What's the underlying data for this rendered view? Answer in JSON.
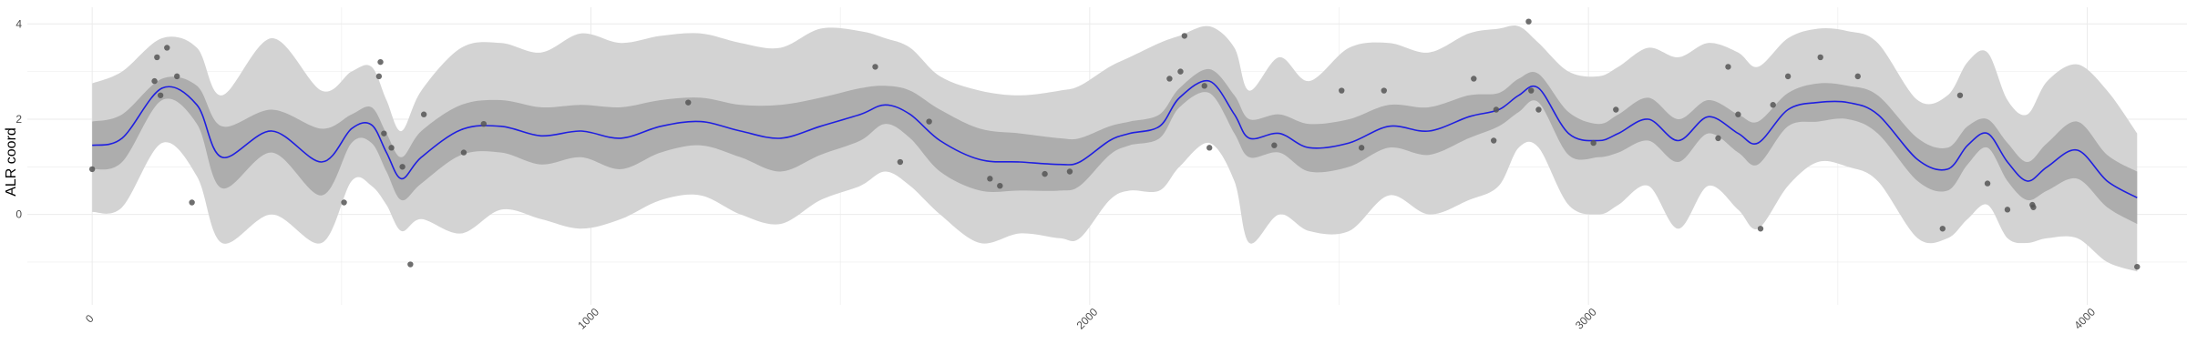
{
  "chart_data": {
    "type": "line",
    "title": "",
    "xlabel": "",
    "ylabel": "ALR coord",
    "xlim": [
      -130,
      4200
    ],
    "ylim": [
      -1.9,
      4.35
    ],
    "x_ticks": [
      0,
      1000,
      2000,
      3000,
      4000
    ],
    "x_tick_labels": [
      "0",
      "1000",
      "2000",
      "3000",
      "4000"
    ],
    "y_ticks": [
      0,
      2,
      4
    ],
    "y_tick_labels": [
      "0",
      "2",
      "4"
    ],
    "grid": true,
    "legend": "none",
    "colors": {
      "mean_line": "#1f1fe0",
      "inner_band": "#adadad",
      "outer_band": "#d3d3d3",
      "points": "#555555",
      "grid": "#ebebeb"
    },
    "mean_curve": {
      "x": [
        0,
        60,
        140,
        210,
        260,
        360,
        460,
        520,
        560,
        590,
        620,
        660,
        740,
        820,
        900,
        980,
        1060,
        1140,
        1220,
        1300,
        1380,
        1460,
        1540,
        1590,
        1640,
        1700,
        1780,
        1860,
        1940,
        1980,
        2040,
        2080,
        2140,
        2180,
        2240,
        2290,
        2320,
        2380,
        2440,
        2520,
        2600,
        2680,
        2760,
        2820,
        2860,
        2900,
        2960,
        3020,
        3060,
        3120,
        3180,
        3240,
        3300,
        3340,
        3400,
        3460,
        3520,
        3580,
        3660,
        3720,
        3760,
        3800,
        3840,
        3880,
        3920,
        3980,
        4040,
        4100
      ],
      "mean": [
        1.45,
        1.6,
        2.65,
        2.3,
        1.2,
        1.75,
        1.1,
        1.8,
        1.88,
        1.3,
        0.75,
        1.2,
        1.78,
        1.85,
        1.65,
        1.75,
        1.6,
        1.85,
        1.95,
        1.75,
        1.6,
        1.85,
        2.1,
        2.3,
        2.1,
        1.55,
        1.15,
        1.1,
        1.05,
        1.1,
        1.55,
        1.7,
        1.85,
        2.45,
        2.8,
        2.1,
        1.6,
        1.7,
        1.4,
        1.5,
        1.85,
        1.75,
        2.05,
        2.2,
        2.5,
        2.65,
        1.7,
        1.55,
        1.7,
        2.0,
        1.55,
        2.05,
        1.7,
        1.5,
        2.2,
        2.35,
        2.35,
        2.1,
        1.15,
        0.95,
        1.45,
        1.7,
        1.1,
        0.7,
        1.0,
        1.35,
        0.7,
        0.35
      ],
      "inner_upper": [
        1.95,
        2.1,
        2.85,
        2.7,
        1.85,
        2.2,
        1.8,
        2.1,
        2.25,
        1.7,
        1.2,
        1.75,
        2.3,
        2.4,
        2.25,
        2.3,
        2.25,
        2.4,
        2.45,
        2.3,
        2.3,
        2.45,
        2.65,
        2.7,
        2.6,
        2.2,
        1.8,
        1.7,
        1.6,
        1.6,
        1.85,
        1.95,
        2.1,
        2.65,
        3.05,
        2.5,
        2.0,
        2.1,
        1.9,
        2.0,
        2.3,
        2.25,
        2.5,
        2.55,
        2.85,
        2.95,
        2.15,
        1.9,
        2.1,
        2.45,
        2.0,
        2.4,
        2.1,
        1.95,
        2.55,
        2.75,
        2.7,
        2.5,
        1.6,
        1.4,
        1.85,
        2.0,
        1.5,
        1.1,
        1.5,
        1.95,
        1.25,
        0.9
      ],
      "inner_lower": [
        0.95,
        1.1,
        2.4,
        1.9,
        0.55,
        1.3,
        0.4,
        1.5,
        1.5,
        0.9,
        0.3,
        0.65,
        1.25,
        1.3,
        1.05,
        1.2,
        0.95,
        1.3,
        1.45,
        1.2,
        0.9,
        1.25,
        1.55,
        1.9,
        1.6,
        0.9,
        0.5,
        0.5,
        0.5,
        0.6,
        1.25,
        1.45,
        1.6,
        2.25,
        2.55,
        1.7,
        1.2,
        1.3,
        0.9,
        1.0,
        1.4,
        1.25,
        1.6,
        1.85,
        2.15,
        2.35,
        1.25,
        1.2,
        1.3,
        1.55,
        1.1,
        1.7,
        1.3,
        1.05,
        1.85,
        1.95,
        2.0,
        1.7,
        0.7,
        0.5,
        1.05,
        1.4,
        0.7,
        0.3,
        0.5,
        0.75,
        0.15,
        -0.2
      ],
      "outer_upper": [
        2.75,
        3.0,
        3.7,
        3.5,
        2.5,
        3.7,
        2.6,
        3.0,
        3.1,
        2.4,
        1.75,
        2.6,
        3.5,
        3.6,
        3.4,
        3.8,
        3.6,
        3.75,
        3.8,
        3.6,
        3.5,
        3.9,
        3.85,
        3.7,
        3.5,
        2.9,
        2.6,
        2.5,
        2.6,
        2.7,
        3.1,
        3.3,
        3.6,
        3.75,
        3.95,
        3.5,
        2.6,
        3.3,
        2.8,
        3.5,
        3.6,
        3.4,
        3.8,
        3.9,
        3.95,
        3.6,
        3.0,
        2.9,
        3.1,
        3.5,
        3.3,
        3.6,
        3.4,
        3.1,
        3.7,
        3.9,
        3.85,
        3.6,
        2.4,
        2.5,
        3.2,
        3.4,
        2.4,
        2.1,
        2.8,
        3.15,
        2.6,
        1.7
      ],
      "outer_lower": [
        0.05,
        0.15,
        1.5,
        0.8,
        -0.6,
        0.0,
        -0.6,
        0.7,
        0.6,
        0.2,
        -0.35,
        -0.1,
        -0.4,
        0.1,
        -0.1,
        -0.3,
        -0.1,
        0.3,
        0.4,
        0.0,
        -0.2,
        0.3,
        0.6,
        0.9,
        0.6,
        0.0,
        -0.6,
        -0.4,
        -0.5,
        -0.5,
        0.3,
        0.5,
        0.5,
        1.0,
        1.5,
        0.7,
        -0.6,
        0.0,
        -0.35,
        -0.35,
        0.4,
        0.0,
        0.3,
        0.6,
        1.4,
        1.4,
        0.2,
        0.0,
        0.2,
        0.6,
        -0.3,
        0.6,
        0.1,
        -0.3,
        0.6,
        1.1,
        1.0,
        0.7,
        -0.5,
        -0.5,
        -0.1,
        0.2,
        -0.5,
        -0.6,
        -0.5,
        -0.5,
        -1.0,
        -1.2
      ]
    },
    "points": {
      "x": [
        0,
        125,
        130,
        137,
        150,
        170,
        200,
        505,
        575,
        578,
        585,
        600,
        622,
        638,
        665,
        745,
        785,
        1195,
        1570,
        1620,
        1678,
        1800,
        1820,
        1910,
        1960,
        2160,
        2182,
        2190,
        2230,
        2240,
        2370,
        2505,
        2545,
        2590,
        2770,
        2810,
        2815,
        2880,
        2885,
        2900,
        3010,
        3055,
        3260,
        3280,
        3300,
        3345,
        3370,
        3400,
        3465,
        3540,
        3710,
        3745,
        3800,
        3840,
        3890,
        3892,
        4100
      ],
      "y": [
        0.95,
        2.8,
        3.3,
        2.5,
        3.5,
        2.9,
        0.25,
        0.25,
        2.9,
        3.2,
        1.7,
        1.4,
        1.0,
        -1.05,
        2.1,
        1.3,
        1.9,
        2.35,
        3.1,
        1.1,
        1.95,
        0.75,
        0.6,
        0.85,
        0.9,
        2.85,
        3.0,
        3.75,
        2.7,
        1.4,
        1.45,
        2.6,
        1.4,
        2.6,
        2.85,
        1.55,
        2.2,
        4.05,
        2.6,
        2.2,
        1.5,
        2.2,
        1.6,
        3.1,
        2.1,
        -0.3,
        2.3,
        2.9,
        3.3,
        2.9,
        -0.3,
        2.5,
        0.65,
        0.1,
        0.2,
        0.15,
        -1.1
      ]
    }
  }
}
